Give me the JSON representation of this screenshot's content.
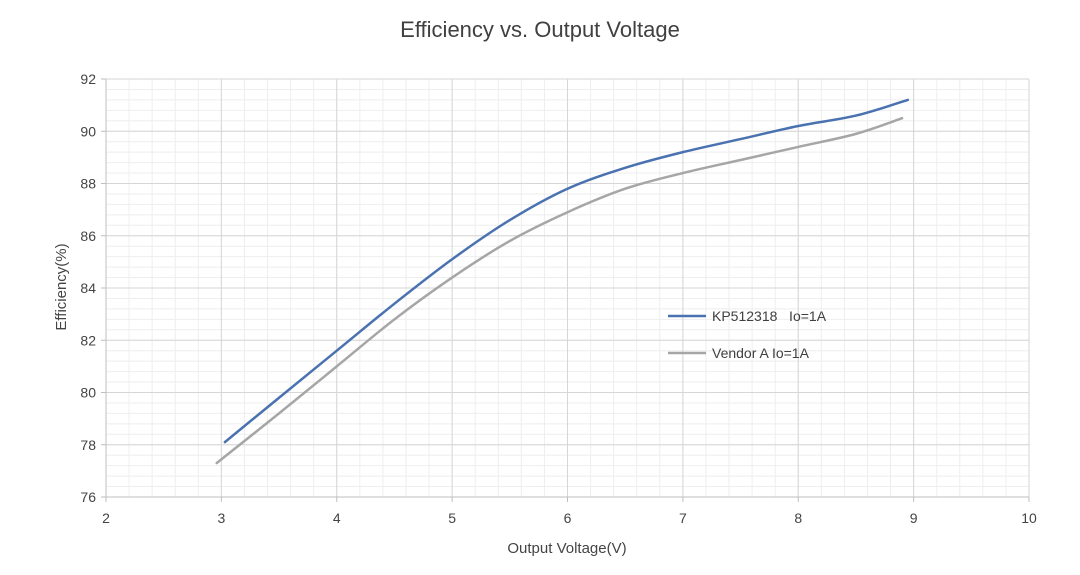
{
  "chart_data": {
    "type": "line",
    "title": "Efficiency vs. Output Voltage",
    "xlabel": "Output Voltage(V)",
    "ylabel": "Efficiency(%)",
    "xlim": [
      2,
      10
    ],
    "ylim": [
      76,
      92
    ],
    "x_ticks": [
      "2",
      "3",
      "4",
      "5",
      "6",
      "7",
      "8",
      "9",
      "10"
    ],
    "y_ticks": [
      "76",
      "78",
      "80",
      "82",
      "84",
      "86",
      "88",
      "90",
      "92"
    ],
    "grid": true,
    "legend": "right-middle",
    "series": [
      {
        "name": "KP512318   Io=1A",
        "color": "#4a72b0",
        "x": [
          3.03,
          3.5,
          4.0,
          4.5,
          5.0,
          5.5,
          6.0,
          6.5,
          7.0,
          7.5,
          8.0,
          8.5,
          8.95
        ],
        "y": [
          78.1,
          79.8,
          81.6,
          83.4,
          85.1,
          86.6,
          87.8,
          88.6,
          89.2,
          89.7,
          90.2,
          90.6,
          91.2
        ]
      },
      {
        "name": "Vendor A Io=1A",
        "color": "#a6a6a6",
        "x": [
          2.96,
          3.5,
          4.0,
          4.5,
          5.0,
          5.5,
          6.0,
          6.5,
          7.0,
          7.5,
          8.0,
          8.5,
          8.9
        ],
        "y": [
          77.3,
          79.2,
          81.0,
          82.8,
          84.4,
          85.8,
          86.9,
          87.8,
          88.4,
          88.9,
          89.4,
          89.9,
          90.5
        ]
      }
    ]
  }
}
